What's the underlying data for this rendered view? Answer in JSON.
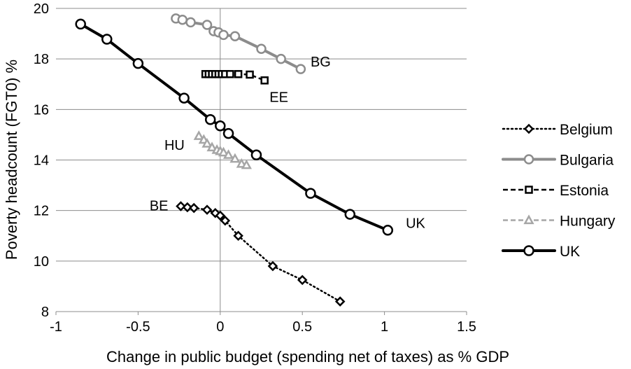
{
  "chart_data": {
    "type": "scatter",
    "title": "",
    "xlabel": "Change in public budget (spending net of taxes) as % GDP",
    "ylabel": "Poverty headcount (FGT0)  %",
    "xlim": [
      -1,
      1.5
    ],
    "ylim": [
      8,
      20
    ],
    "x_ticks": [
      -1,
      -0.5,
      0,
      0.5,
      1,
      1.5
    ],
    "x_tick_labels": [
      "-1",
      "-0.5",
      "0",
      "0.5",
      "1",
      "1.5"
    ],
    "y_ticks": [
      8,
      10,
      12,
      14,
      16,
      18,
      20
    ],
    "y_tick_labels": [
      "8",
      "10",
      "12",
      "14",
      "16",
      "18",
      "20"
    ],
    "grid": "horizontal",
    "legend_position": "right",
    "series": [
      {
        "name": "Belgium",
        "label": "BE",
        "marker": "diamond",
        "line": "dotted",
        "color": "#000000",
        "x": [
          -0.24,
          -0.2,
          -0.16,
          -0.08,
          -0.03,
          0.0,
          0.03,
          0.11,
          0.32,
          0.5,
          0.73
        ],
        "y": [
          12.17,
          12.13,
          12.1,
          12.03,
          11.9,
          11.8,
          11.6,
          11.0,
          9.8,
          9.25,
          8.4
        ]
      },
      {
        "name": "Bulgaria",
        "label": "BG",
        "marker": "circle",
        "line": "solid",
        "color": "#8c8c8c",
        "x": [
          -0.27,
          -0.23,
          -0.18,
          -0.08,
          -0.04,
          -0.01,
          0.02,
          0.09,
          0.25,
          0.37,
          0.49
        ],
        "y": [
          19.6,
          19.55,
          19.45,
          19.35,
          19.1,
          19.05,
          18.95,
          18.9,
          18.4,
          18.0,
          17.6
        ]
      },
      {
        "name": "Estonia",
        "label": "EE",
        "marker": "square",
        "line": "dashed",
        "color": "#000000",
        "x": [
          -0.09,
          -0.07,
          -0.05,
          -0.03,
          -0.01,
          0.01,
          0.03,
          0.06,
          0.11,
          0.18,
          0.27
        ],
        "y": [
          17.4,
          17.4,
          17.4,
          17.4,
          17.4,
          17.4,
          17.4,
          17.4,
          17.4,
          17.38,
          17.15
        ]
      },
      {
        "name": "Hungary",
        "label": "HU",
        "marker": "triangle",
        "line": "dashed",
        "color": "#a6a6a6",
        "x": [
          -0.13,
          -0.1,
          -0.08,
          -0.05,
          -0.02,
          0.0,
          0.02,
          0.05,
          0.09,
          0.13,
          0.16
        ],
        "y": [
          14.95,
          14.8,
          14.65,
          14.5,
          14.4,
          14.35,
          14.3,
          14.2,
          14.05,
          13.85,
          13.8
        ]
      },
      {
        "name": "UK",
        "label": "UK",
        "marker": "circle",
        "line": "solid",
        "color": "#000000",
        "x": [
          -0.85,
          -0.69,
          -0.5,
          -0.22,
          -0.06,
          0.0,
          0.05,
          0.22,
          0.55,
          0.79,
          1.02
        ],
        "y": [
          19.38,
          18.78,
          17.82,
          16.45,
          15.6,
          15.35,
          15.05,
          14.2,
          12.68,
          11.85,
          11.22
        ]
      }
    ]
  }
}
